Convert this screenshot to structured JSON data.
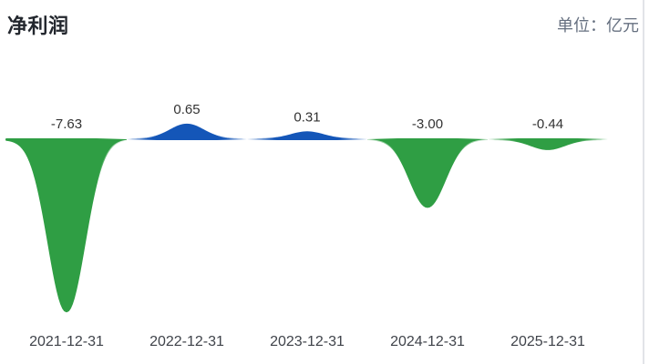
{
  "header": {
    "title": "净利润",
    "unit_label": "单位：亿元"
  },
  "chart_data": {
    "type": "area",
    "subtype": "smoothed-peak-area-chart",
    "title": "净利润",
    "unit": "亿元",
    "categories": [
      "2021-12-31",
      "2022-12-31",
      "2023-12-31",
      "2024-12-31",
      "2025-12-31"
    ],
    "values": [
      -7.63,
      0.65,
      0.31,
      -3.0,
      -0.44
    ],
    "value_labels": [
      "-7.63",
      "0.65",
      "0.31",
      "-3.00",
      "-0.44"
    ],
    "baseline": 0,
    "ylim": [
      -8,
      1
    ],
    "grid": "off",
    "legend": "none",
    "colors": {
      "positive": "#1456b8",
      "negative": "#2f9e44",
      "value_label": "#333333",
      "axis_label": "#3f434a",
      "title": "#23272e",
      "unit_label": "#667080",
      "panel_border": "#e2e4e8"
    }
  }
}
